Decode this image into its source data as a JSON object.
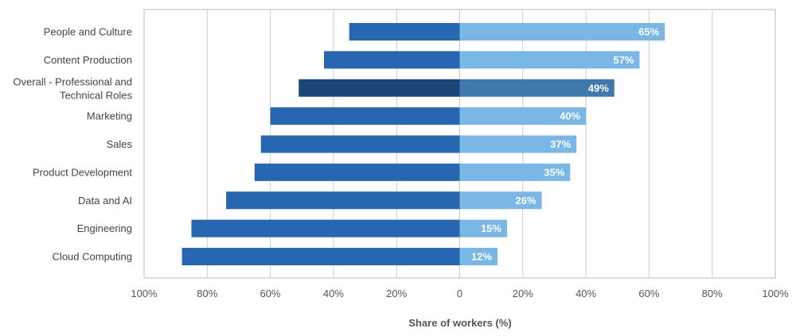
{
  "chart_data": {
    "type": "bar",
    "orientation": "horizontal-diverging",
    "xlabel": "Share of workers (%)",
    "xlim": [
      -100,
      100
    ],
    "x_ticks": [
      -100,
      -80,
      -60,
      -40,
      -20,
      0,
      20,
      40,
      60,
      80,
      100
    ],
    "x_tick_labels": [
      "100%",
      "80%",
      "60%",
      "40%",
      "20%",
      "0",
      "20%",
      "40%",
      "60%",
      "80%",
      "100%"
    ],
    "grid": "vertical",
    "categories": [
      "People and Culture",
      "Content Production",
      "Overall - Professional and Technical Roles",
      "Marketing",
      "Sales",
      "Product Development",
      "Data and AI",
      "Engineering",
      "Cloud Computing"
    ],
    "category_lines": [
      [
        "People and Culture"
      ],
      [
        "Content Production"
      ],
      [
        "Overall - Professional and",
        "Technical Roles"
      ],
      [
        "Marketing"
      ],
      [
        "Sales"
      ],
      [
        "Product Development"
      ],
      [
        "Data and AI"
      ],
      [
        "Engineering"
      ],
      [
        "Cloud Computing"
      ]
    ],
    "highlight_category": "Overall - Professional and Technical Roles",
    "series": [
      {
        "side": "left",
        "values": [
          35,
          43,
          51,
          60,
          63,
          65,
          74,
          85,
          88
        ]
      },
      {
        "side": "right",
        "values": [
          65,
          57,
          49,
          40,
          37,
          35,
          26,
          15,
          12
        ]
      }
    ],
    "data_labels": [
      "65%",
      "57%",
      "49%",
      "40%",
      "37%",
      "35%",
      "26%",
      "15%",
      "12%"
    ],
    "colors": {
      "left": "#2766b0",
      "right": "#79b8e6",
      "left_highlight": "#1c4678",
      "right_highlight": "#3f78ac",
      "grid": "#cccccc",
      "frame": "#bbbbbb"
    }
  }
}
